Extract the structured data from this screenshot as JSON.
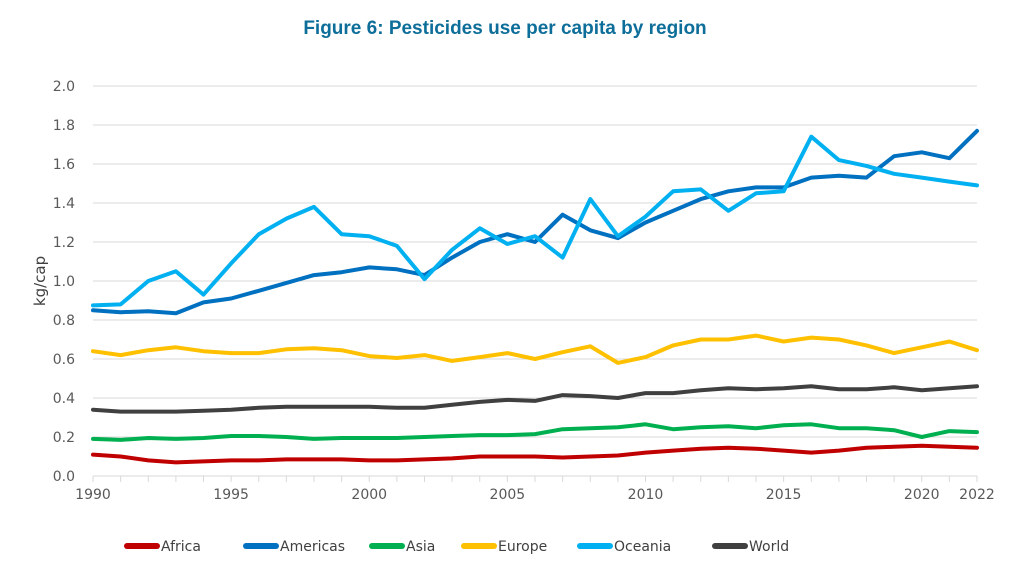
{
  "chart_data": {
    "type": "line",
    "title": "Figure 6: Pesticides use per capita by region",
    "xlabel": "",
    "ylabel": "kg/cap",
    "ylim": [
      0,
      2.0
    ],
    "xlim": [
      1990,
      2022
    ],
    "yticks": [
      "0.0",
      "0.2",
      "0.4",
      "0.6",
      "0.8",
      "1.0",
      "1.2",
      "1.4",
      "1.6",
      "1.8",
      "2.0"
    ],
    "xticks": [
      "1990",
      "1995",
      "2000",
      "2005",
      "2010",
      "2015",
      "2020",
      "2022"
    ],
    "grid": true,
    "legend_position": "bottom",
    "x": [
      1990,
      1991,
      1992,
      1993,
      1994,
      1995,
      1996,
      1997,
      1998,
      1999,
      2000,
      2001,
      2002,
      2003,
      2004,
      2005,
      2006,
      2007,
      2008,
      2009,
      2010,
      2011,
      2012,
      2013,
      2014,
      2015,
      2016,
      2017,
      2018,
      2019,
      2020,
      2021,
      2022
    ],
    "series": [
      {
        "name": "Africa",
        "color": "#c00000",
        "values": [
          0.11,
          0.1,
          0.08,
          0.07,
          0.075,
          0.08,
          0.08,
          0.085,
          0.085,
          0.085,
          0.08,
          0.08,
          0.085,
          0.09,
          0.1,
          0.1,
          0.1,
          0.095,
          0.1,
          0.105,
          0.12,
          0.13,
          0.14,
          0.145,
          0.14,
          0.13,
          0.12,
          0.13,
          0.145,
          0.15,
          0.155,
          0.15,
          0.145
        ]
      },
      {
        "name": "Americas",
        "color": "#0070c0",
        "values": [
          0.85,
          0.84,
          0.845,
          0.835,
          0.89,
          0.91,
          0.95,
          0.99,
          1.03,
          1.045,
          1.07,
          1.06,
          1.03,
          1.12,
          1.2,
          1.24,
          1.2,
          1.34,
          1.26,
          1.22,
          1.3,
          1.36,
          1.42,
          1.46,
          1.48,
          1.48,
          1.53,
          1.54,
          1.53,
          1.64,
          1.66,
          1.63,
          1.77
        ]
      },
      {
        "name": "Asia",
        "color": "#00b050",
        "values": [
          0.19,
          0.185,
          0.195,
          0.19,
          0.195,
          0.205,
          0.205,
          0.2,
          0.19,
          0.195,
          0.195,
          0.195,
          0.2,
          0.205,
          0.21,
          0.21,
          0.215,
          0.24,
          0.245,
          0.25,
          0.265,
          0.24,
          0.25,
          0.255,
          0.245,
          0.26,
          0.265,
          0.245,
          0.245,
          0.235,
          0.2,
          0.23,
          0.225
        ]
      },
      {
        "name": "Europe",
        "color": "#ffc000",
        "values": [
          0.64,
          0.62,
          0.645,
          0.66,
          0.64,
          0.63,
          0.63,
          0.65,
          0.655,
          0.645,
          0.615,
          0.605,
          0.62,
          0.59,
          0.61,
          0.63,
          0.6,
          0.635,
          0.665,
          0.58,
          0.61,
          0.67,
          0.7,
          0.7,
          0.72,
          0.69,
          0.71,
          0.7,
          0.67,
          0.63,
          0.66,
          0.69,
          0.645
        ]
      },
      {
        "name": "Oceania",
        "color": "#00b0f0",
        "values": [
          0.875,
          0.88,
          1.0,
          1.05,
          0.93,
          1.09,
          1.24,
          1.32,
          1.38,
          1.24,
          1.23,
          1.18,
          1.01,
          1.16,
          1.27,
          1.19,
          1.23,
          1.12,
          1.42,
          1.23,
          1.33,
          1.46,
          1.47,
          1.36,
          1.45,
          1.46,
          1.74,
          1.62,
          1.59,
          1.55,
          1.53,
          1.51,
          1.49
        ]
      },
      {
        "name": "World",
        "color": "#404040",
        "values": [
          0.34,
          0.33,
          0.33,
          0.33,
          0.335,
          0.34,
          0.35,
          0.355,
          0.355,
          0.355,
          0.355,
          0.35,
          0.35,
          0.365,
          0.38,
          0.39,
          0.385,
          0.415,
          0.41,
          0.4,
          0.425,
          0.425,
          0.44,
          0.45,
          0.445,
          0.45,
          0.46,
          0.445,
          0.445,
          0.455,
          0.44,
          0.45,
          0.46
        ]
      }
    ]
  }
}
